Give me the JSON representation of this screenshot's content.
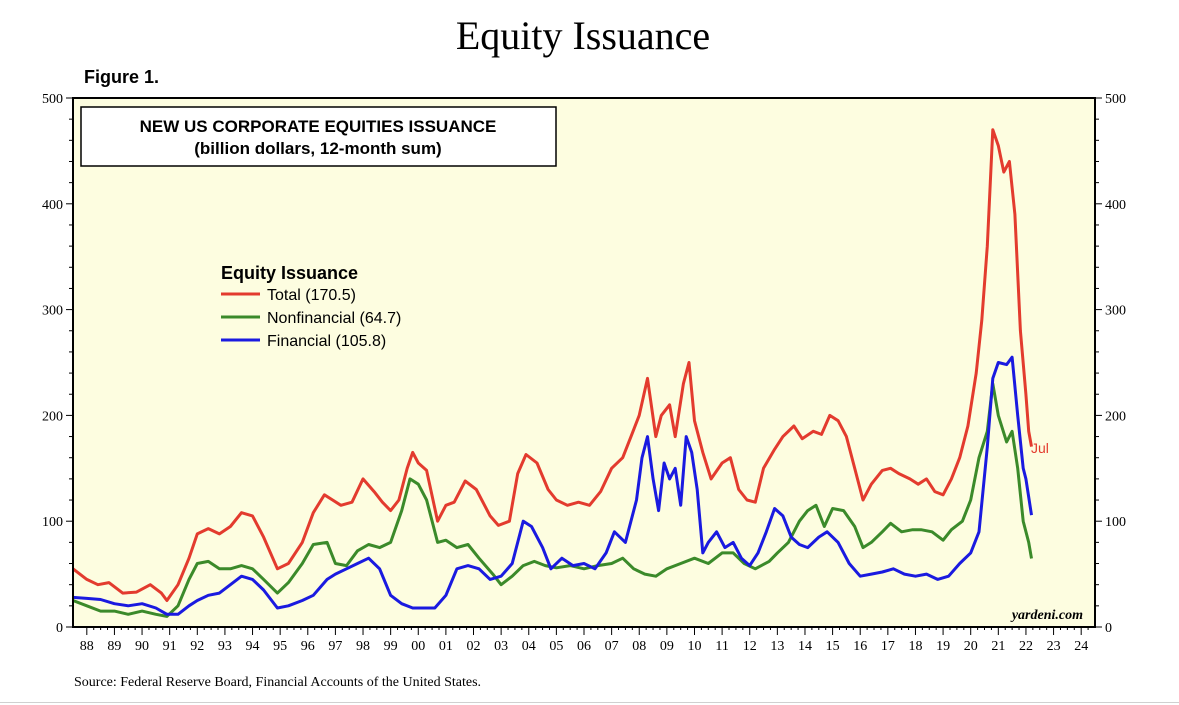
{
  "page": {
    "title": "Equity Issuance",
    "figure_label": "Figure 1.",
    "source": "Source: Federal Reserve Board, Financial Accounts of the United States."
  },
  "colors": {
    "plot_background": "#fdfde0",
    "total": "#e33b2e",
    "nonfinancial": "#3b8a2a",
    "financial": "#1a1ae0"
  },
  "chart_data": {
    "type": "line",
    "title": "NEW US CORPORATE EQUITIES ISSUANCE",
    "subtitle": "(billion dollars, 12-month sum)",
    "legend_title": "Equity Issuance",
    "legend_position": "upper-left",
    "end_label": "Jul",
    "watermark": "yardeni.com",
    "xlabel": "",
    "ylabel": "",
    "xlim": [
      1987.5,
      2024.5
    ],
    "ylim": [
      0,
      500
    ],
    "y_ticks": [
      "0",
      "100",
      "200",
      "300",
      "400",
      "500"
    ],
    "x_ticks": [
      "88",
      "89",
      "90",
      "91",
      "92",
      "93",
      "94",
      "95",
      "96",
      "97",
      "98",
      "99",
      "00",
      "01",
      "02",
      "03",
      "04",
      "05",
      "06",
      "07",
      "08",
      "09",
      "10",
      "11",
      "12",
      "13",
      "14",
      "15",
      "16",
      "17",
      "18",
      "19",
      "20",
      "21",
      "22",
      "23",
      "24"
    ],
    "grid": false,
    "series": [
      {
        "key": "total",
        "name": "Total",
        "latest": "(170.5)",
        "points": [
          [
            1987.5,
            55
          ],
          [
            1988.0,
            45
          ],
          [
            1988.4,
            40
          ],
          [
            1988.8,
            42
          ],
          [
            1989.3,
            32
          ],
          [
            1989.8,
            33
          ],
          [
            1990.3,
            40
          ],
          [
            1990.7,
            32
          ],
          [
            1990.9,
            25
          ],
          [
            1991.3,
            40
          ],
          [
            1991.7,
            65
          ],
          [
            1992.0,
            88
          ],
          [
            1992.4,
            93
          ],
          [
            1992.8,
            88
          ],
          [
            1993.2,
            95
          ],
          [
            1993.6,
            108
          ],
          [
            1994.0,
            105
          ],
          [
            1994.4,
            85
          ],
          [
            1994.9,
            55
          ],
          [
            1995.3,
            60
          ],
          [
            1995.8,
            80
          ],
          [
            1996.2,
            108
          ],
          [
            1996.6,
            125
          ],
          [
            1996.9,
            120
          ],
          [
            1997.2,
            115
          ],
          [
            1997.6,
            118
          ],
          [
            1998.0,
            140
          ],
          [
            1998.4,
            128
          ],
          [
            1998.7,
            118
          ],
          [
            1999.0,
            110
          ],
          [
            1999.3,
            120
          ],
          [
            1999.6,
            150
          ],
          [
            1999.8,
            165
          ],
          [
            2000.0,
            155
          ],
          [
            2000.3,
            148
          ],
          [
            2000.7,
            100
          ],
          [
            2001.0,
            115
          ],
          [
            2001.3,
            118
          ],
          [
            2001.7,
            138
          ],
          [
            2002.1,
            130
          ],
          [
            2002.6,
            105
          ],
          [
            2002.9,
            96
          ],
          [
            2003.3,
            100
          ],
          [
            2003.6,
            145
          ],
          [
            2003.9,
            163
          ],
          [
            2004.3,
            155
          ],
          [
            2004.7,
            130
          ],
          [
            2005.0,
            120
          ],
          [
            2005.4,
            115
          ],
          [
            2005.8,
            118
          ],
          [
            2006.2,
            115
          ],
          [
            2006.6,
            128
          ],
          [
            2007.0,
            150
          ],
          [
            2007.4,
            160
          ],
          [
            2007.7,
            180
          ],
          [
            2008.0,
            200
          ],
          [
            2008.3,
            235
          ],
          [
            2008.6,
            180
          ],
          [
            2008.8,
            200
          ],
          [
            2009.1,
            210
          ],
          [
            2009.3,
            180
          ],
          [
            2009.6,
            230
          ],
          [
            2009.8,
            250
          ],
          [
            2010.0,
            195
          ],
          [
            2010.3,
            165
          ],
          [
            2010.6,
            140
          ],
          [
            2011.0,
            155
          ],
          [
            2011.3,
            160
          ],
          [
            2011.6,
            130
          ],
          [
            2011.9,
            120
          ],
          [
            2012.2,
            118
          ],
          [
            2012.5,
            150
          ],
          [
            2012.9,
            168
          ],
          [
            2013.2,
            180
          ],
          [
            2013.6,
            190
          ],
          [
            2013.9,
            178
          ],
          [
            2014.3,
            185
          ],
          [
            2014.6,
            182
          ],
          [
            2014.9,
            200
          ],
          [
            2015.2,
            195
          ],
          [
            2015.5,
            180
          ],
          [
            2015.8,
            150
          ],
          [
            2016.1,
            120
          ],
          [
            2016.4,
            135
          ],
          [
            2016.8,
            148
          ],
          [
            2017.1,
            150
          ],
          [
            2017.4,
            145
          ],
          [
            2017.8,
            140
          ],
          [
            2018.1,
            135
          ],
          [
            2018.4,
            140
          ],
          [
            2018.7,
            128
          ],
          [
            2019.0,
            125
          ],
          [
            2019.3,
            140
          ],
          [
            2019.6,
            160
          ],
          [
            2019.9,
            190
          ],
          [
            2020.2,
            240
          ],
          [
            2020.4,
            290
          ],
          [
            2020.6,
            360
          ],
          [
            2020.8,
            470
          ],
          [
            2021.0,
            455
          ],
          [
            2021.2,
            430
          ],
          [
            2021.4,
            440
          ],
          [
            2021.6,
            390
          ],
          [
            2021.8,
            280
          ],
          [
            2022.0,
            220
          ],
          [
            2022.1,
            185
          ],
          [
            2022.2,
            170.5
          ]
        ]
      },
      {
        "key": "nonfinancial",
        "name": "Nonfinancial",
        "latest": "(64.7)",
        "points": [
          [
            1987.5,
            25
          ],
          [
            1988.0,
            20
          ],
          [
            1988.5,
            15
          ],
          [
            1989.0,
            15
          ],
          [
            1989.5,
            12
          ],
          [
            1990.0,
            15
          ],
          [
            1990.5,
            12
          ],
          [
            1990.9,
            10
          ],
          [
            1991.3,
            20
          ],
          [
            1991.7,
            45
          ],
          [
            1992.0,
            60
          ],
          [
            1992.4,
            62
          ],
          [
            1992.8,
            55
          ],
          [
            1993.2,
            55
          ],
          [
            1993.6,
            58
          ],
          [
            1994.0,
            55
          ],
          [
            1994.4,
            45
          ],
          [
            1994.9,
            32
          ],
          [
            1995.3,
            42
          ],
          [
            1995.8,
            60
          ],
          [
            1996.2,
            78
          ],
          [
            1996.7,
            80
          ],
          [
            1997.0,
            60
          ],
          [
            1997.4,
            58
          ],
          [
            1997.8,
            72
          ],
          [
            1998.2,
            78
          ],
          [
            1998.6,
            75
          ],
          [
            1999.0,
            80
          ],
          [
            1999.4,
            110
          ],
          [
            1999.7,
            140
          ],
          [
            2000.0,
            135
          ],
          [
            2000.3,
            120
          ],
          [
            2000.7,
            80
          ],
          [
            2001.0,
            82
          ],
          [
            2001.4,
            75
          ],
          [
            2001.8,
            78
          ],
          [
            2002.2,
            65
          ],
          [
            2002.7,
            50
          ],
          [
            2003.0,
            40
          ],
          [
            2003.4,
            48
          ],
          [
            2003.8,
            58
          ],
          [
            2004.2,
            62
          ],
          [
            2004.6,
            58
          ],
          [
            2005.0,
            56
          ],
          [
            2005.5,
            58
          ],
          [
            2006.0,
            55
          ],
          [
            2006.5,
            58
          ],
          [
            2007.0,
            60
          ],
          [
            2007.4,
            65
          ],
          [
            2007.8,
            55
          ],
          [
            2008.2,
            50
          ],
          [
            2008.6,
            48
          ],
          [
            2009.0,
            55
          ],
          [
            2009.5,
            60
          ],
          [
            2010.0,
            65
          ],
          [
            2010.5,
            60
          ],
          [
            2011.0,
            70
          ],
          [
            2011.4,
            70
          ],
          [
            2011.8,
            60
          ],
          [
            2012.2,
            55
          ],
          [
            2012.7,
            62
          ],
          [
            2013.0,
            70
          ],
          [
            2013.4,
            80
          ],
          [
            2013.8,
            100
          ],
          [
            2014.1,
            110
          ],
          [
            2014.4,
            115
          ],
          [
            2014.7,
            95
          ],
          [
            2015.0,
            112
          ],
          [
            2015.4,
            110
          ],
          [
            2015.8,
            95
          ],
          [
            2016.1,
            75
          ],
          [
            2016.4,
            80
          ],
          [
            2016.8,
            90
          ],
          [
            2017.1,
            98
          ],
          [
            2017.5,
            90
          ],
          [
            2017.9,
            92
          ],
          [
            2018.2,
            92
          ],
          [
            2018.6,
            90
          ],
          [
            2019.0,
            82
          ],
          [
            2019.3,
            92
          ],
          [
            2019.7,
            100
          ],
          [
            2020.0,
            120
          ],
          [
            2020.3,
            160
          ],
          [
            2020.6,
            185
          ],
          [
            2020.8,
            230
          ],
          [
            2021.0,
            200
          ],
          [
            2021.3,
            175
          ],
          [
            2021.5,
            185
          ],
          [
            2021.7,
            150
          ],
          [
            2021.9,
            100
          ],
          [
            2022.1,
            80
          ],
          [
            2022.2,
            64.7
          ]
        ]
      },
      {
        "key": "financial",
        "name": "Financial",
        "latest": "(105.8)",
        "points": [
          [
            1987.5,
            28
          ],
          [
            1988.0,
            27
          ],
          [
            1988.5,
            26
          ],
          [
            1989.0,
            22
          ],
          [
            1989.5,
            20
          ],
          [
            1990.0,
            22
          ],
          [
            1990.5,
            18
          ],
          [
            1990.9,
            12
          ],
          [
            1991.3,
            12
          ],
          [
            1991.7,
            20
          ],
          [
            1992.0,
            25
          ],
          [
            1992.4,
            30
          ],
          [
            1992.8,
            32
          ],
          [
            1993.2,
            40
          ],
          [
            1993.6,
            48
          ],
          [
            1994.0,
            45
          ],
          [
            1994.4,
            35
          ],
          [
            1994.9,
            18
          ],
          [
            1995.3,
            20
          ],
          [
            1995.8,
            25
          ],
          [
            1996.2,
            30
          ],
          [
            1996.7,
            45
          ],
          [
            1997.0,
            50
          ],
          [
            1997.4,
            55
          ],
          [
            1997.8,
            60
          ],
          [
            1998.2,
            65
          ],
          [
            1998.6,
            55
          ],
          [
            1999.0,
            30
          ],
          [
            1999.4,
            22
          ],
          [
            1999.8,
            18
          ],
          [
            2000.2,
            18
          ],
          [
            2000.6,
            18
          ],
          [
            2001.0,
            30
          ],
          [
            2001.4,
            55
          ],
          [
            2001.8,
            58
          ],
          [
            2002.2,
            55
          ],
          [
            2002.6,
            45
          ],
          [
            2003.0,
            48
          ],
          [
            2003.4,
            60
          ],
          [
            2003.8,
            100
          ],
          [
            2004.1,
            95
          ],
          [
            2004.5,
            75
          ],
          [
            2004.8,
            55
          ],
          [
            2005.2,
            65
          ],
          [
            2005.6,
            58
          ],
          [
            2006.0,
            60
          ],
          [
            2006.4,
            55
          ],
          [
            2006.8,
            70
          ],
          [
            2007.1,
            90
          ],
          [
            2007.5,
            80
          ],
          [
            2007.9,
            120
          ],
          [
            2008.1,
            160
          ],
          [
            2008.3,
            180
          ],
          [
            2008.5,
            140
          ],
          [
            2008.7,
            110
          ],
          [
            2008.9,
            155
          ],
          [
            2009.1,
            140
          ],
          [
            2009.3,
            150
          ],
          [
            2009.5,
            115
          ],
          [
            2009.7,
            180
          ],
          [
            2009.9,
            165
          ],
          [
            2010.1,
            130
          ],
          [
            2010.3,
            70
          ],
          [
            2010.5,
            80
          ],
          [
            2010.8,
            90
          ],
          [
            2011.1,
            75
          ],
          [
            2011.4,
            80
          ],
          [
            2011.7,
            65
          ],
          [
            2012.0,
            58
          ],
          [
            2012.3,
            70
          ],
          [
            2012.6,
            90
          ],
          [
            2012.9,
            112
          ],
          [
            2013.2,
            105
          ],
          [
            2013.5,
            85
          ],
          [
            2013.8,
            78
          ],
          [
            2014.1,
            75
          ],
          [
            2014.5,
            85
          ],
          [
            2014.8,
            90
          ],
          [
            2015.2,
            80
          ],
          [
            2015.6,
            60
          ],
          [
            2016.0,
            48
          ],
          [
            2016.4,
            50
          ],
          [
            2016.8,
            52
          ],
          [
            2017.2,
            55
          ],
          [
            2017.6,
            50
          ],
          [
            2018.0,
            48
          ],
          [
            2018.4,
            50
          ],
          [
            2018.8,
            45
          ],
          [
            2019.2,
            48
          ],
          [
            2019.6,
            60
          ],
          [
            2020.0,
            70
          ],
          [
            2020.3,
            90
          ],
          [
            2020.6,
            170
          ],
          [
            2020.8,
            235
          ],
          [
            2021.0,
            250
          ],
          [
            2021.3,
            248
          ],
          [
            2021.5,
            255
          ],
          [
            2021.7,
            200
          ],
          [
            2021.9,
            150
          ],
          [
            2022.0,
            140
          ],
          [
            2022.2,
            105.8
          ]
        ]
      }
    ]
  }
}
